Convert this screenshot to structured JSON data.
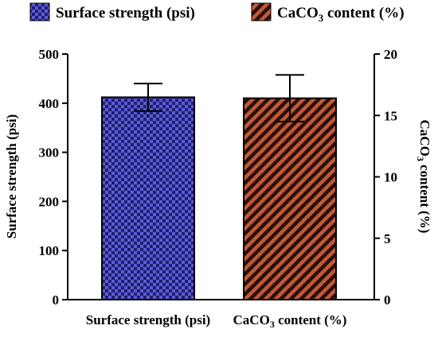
{
  "chart_data": {
    "type": "bar",
    "categories": [
      "Surface strength (psi)",
      "CaCO3 content (%)"
    ],
    "series": [
      {
        "name": "Surface strength (psi)",
        "axis": "left",
        "category": 0,
        "value": 412,
        "error": 28,
        "color": "#5b5bd6",
        "pattern": "checkerboard"
      },
      {
        "name": "CaCO3 content (%)",
        "axis": "right",
        "category": 1,
        "value": 16.4,
        "error": 1.9,
        "color": "#b84a2e",
        "pattern": "diagonal-stripes"
      }
    ],
    "ylabel": "Surface strength  (psi)",
    "y2label": "CaCO3 content (%)",
    "ylim": [
      0,
      500
    ],
    "y2lim": [
      0,
      20
    ],
    "yticks": [
      "0",
      "100",
      "200",
      "300",
      "400",
      "500"
    ],
    "y2ticks": [
      "0",
      "5",
      "10",
      "15",
      "20"
    ],
    "legend": {
      "placement": "top",
      "entries": [
        "Surface strength (psi)",
        "CaCO3 content (%)"
      ]
    },
    "grid": false
  }
}
